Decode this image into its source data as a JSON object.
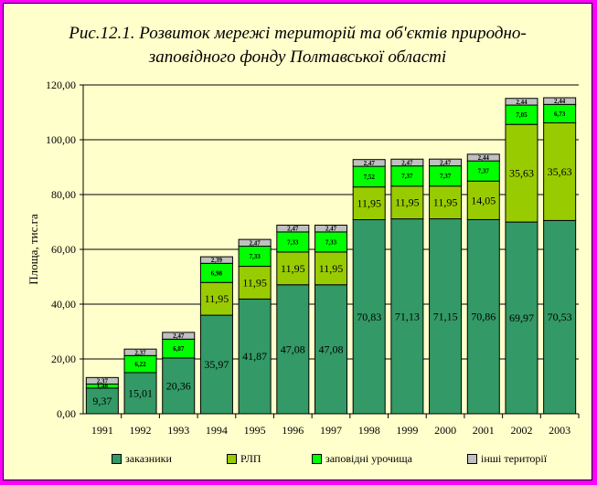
{
  "chart_data": {
    "type": "bar",
    "stacked": true,
    "title_line1": "Рис.12.1. Розвиток мережі територій та об'єктів природно-",
    "title_line2": "заповідного фонду Полтавської області",
    "ylabel": "Площа, тис.га",
    "ylim": [
      0,
      120
    ],
    "yticks": [
      "0,00",
      "20,00",
      "40,00",
      "60,00",
      "80,00",
      "100,00",
      "120,00"
    ],
    "categories": [
      "1991",
      "1992",
      "1993",
      "1994",
      "1995",
      "1996",
      "1997",
      "1998",
      "1999",
      "2000",
      "2001",
      "2002",
      "2003"
    ],
    "series": [
      {
        "name": "заказники",
        "color": "#339966",
        "values": [
          9.37,
          15.01,
          20.36,
          35.97,
          41.87,
          47.08,
          47.08,
          70.83,
          71.13,
          71.15,
          70.86,
          69.97,
          70.53
        ],
        "labels": [
          "9,37",
          "15,01",
          "20,36",
          "35,97",
          "41,87",
          "47,08",
          "47,08",
          "70,83",
          "71,13",
          "71,15",
          "70,86",
          "69,97",
          "70,53"
        ]
      },
      {
        "name": "РЛП",
        "color": "#99cc00",
        "values": [
          0,
          0,
          0,
          11.95,
          11.95,
          11.95,
          11.95,
          11.95,
          11.95,
          11.95,
          14.05,
          35.63,
          35.63
        ],
        "labels": [
          "",
          "",
          "",
          "11,95",
          "11,95",
          "11,95",
          "11,95",
          "11,95",
          "11,95",
          "11,95",
          "14,05",
          "35,63",
          "35,63"
        ]
      },
      {
        "name": "заповідні урочища",
        "color": "#00ff00",
        "values": [
          1.48,
          6.22,
          6.87,
          6.98,
          7.33,
          7.33,
          7.33,
          7.52,
          7.37,
          7.37,
          7.37,
          7.05,
          6.73
        ],
        "labels": [
          "1,48",
          "6,22",
          "6,87",
          "6,98",
          "7,33",
          "7,33",
          "7,33",
          "7,52",
          "7,37",
          "7,37",
          "7,37",
          "7,05",
          "6,73"
        ]
      },
      {
        "name": "інші території",
        "color": "#c0c0c0",
        "values": [
          2.37,
          2.37,
          2.47,
          2.39,
          2.47,
          2.47,
          2.47,
          2.47,
          2.47,
          2.47,
          2.44,
          2.44,
          2.44
        ],
        "labels": [
          "2,37",
          "2,37",
          "2,47",
          "2,39",
          "2,47",
          "2,47",
          "2,47",
          "2,47",
          "2,47",
          "2,47",
          "2,44",
          "2,44",
          "2,44"
        ]
      }
    ],
    "grid": true,
    "legend": "bottom"
  }
}
